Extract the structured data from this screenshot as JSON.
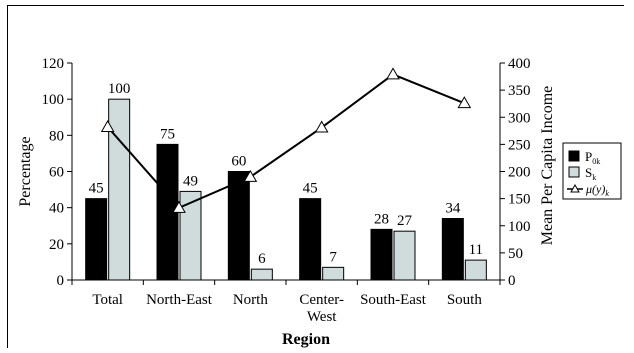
{
  "chart_data": {
    "type": "bar",
    "xlabel": "Region",
    "ylabel": "Percentage",
    "y2label": "Mean Per Capita Income",
    "ylim": [
      0,
      120
    ],
    "yticks": [
      0,
      20,
      40,
      60,
      80,
      100,
      120
    ],
    "y2lim": [
      0,
      400
    ],
    "y2ticks": [
      0,
      50,
      100,
      150,
      200,
      250,
      300,
      350,
      400
    ],
    "categories": [
      [
        "Total"
      ],
      [
        "North-East"
      ],
      [
        "North"
      ],
      [
        "Center-",
        "West"
      ],
      [
        "South-East"
      ],
      [
        "South"
      ]
    ],
    "legend_position": "right",
    "series": [
      {
        "name": "P",
        "sub": "0k",
        "kind": "bar",
        "axis": "left",
        "color": "#000000",
        "values": [
          45,
          75,
          60,
          45,
          28,
          34
        ]
      },
      {
        "name": "S",
        "sub": "k",
        "kind": "bar",
        "axis": "left",
        "color": "#d0dcdc",
        "values": [
          100,
          49,
          6,
          7,
          27,
          11
        ]
      },
      {
        "name": "μ(y)",
        "sub": "k",
        "kind": "line",
        "axis": "right",
        "color": "#000000",
        "marker": "open-triangle",
        "values": [
          282,
          133,
          190,
          281,
          379,
          326
        ]
      }
    ]
  }
}
